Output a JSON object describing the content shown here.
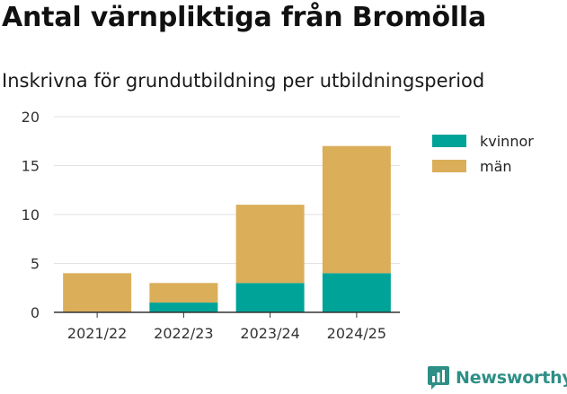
{
  "title": "Antal värnpliktiga från Bromölla",
  "subtitle": "Inskrivna för grundutbildning per utbildningsperiod",
  "brand": {
    "name": "Newsworthy",
    "color": "#2e8f86",
    "icon": "bar-chart-speech-bubble-icon"
  },
  "colors": {
    "kvinnor": "#00a398",
    "man": "#dbae5a",
    "grid": "#e2e2e2",
    "axis": "#333333"
  },
  "chart_data": {
    "type": "bar",
    "stacked": true,
    "categories": [
      "2021/22",
      "2022/23",
      "2023/24",
      "2024/25"
    ],
    "series": [
      {
        "name": "kvinnor",
        "values": [
          0,
          1,
          3,
          4
        ]
      },
      {
        "name": "män",
        "values": [
          4,
          2,
          8,
          13
        ]
      }
    ],
    "ylim": [
      0,
      20
    ],
    "yticks": [
      0,
      5,
      10,
      15,
      20
    ],
    "grid": true,
    "legend_position": "right"
  }
}
